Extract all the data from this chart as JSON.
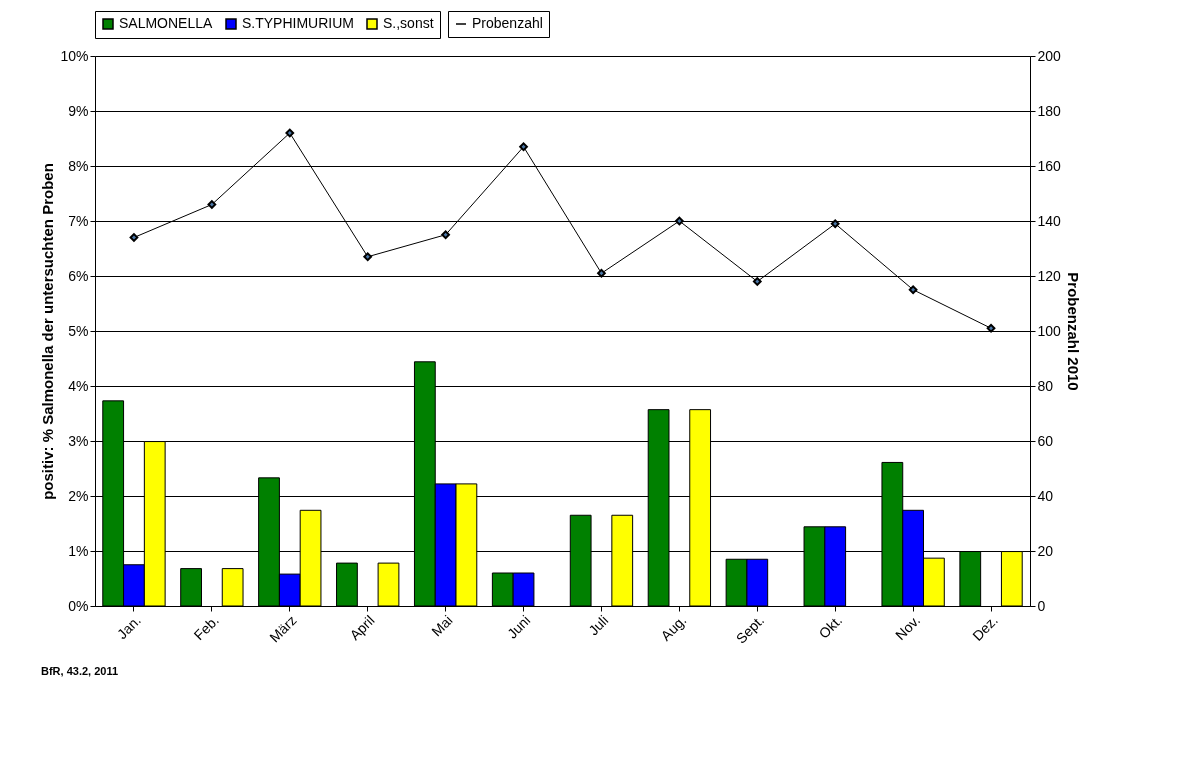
{
  "chart_data": {
    "type": "bar",
    "categories": [
      "Jan.",
      "Feb.",
      "März",
      "April",
      "Mai",
      "Juni",
      "Juli",
      "Aug.",
      "Sept.",
      "Okt.",
      "Nov.",
      "Dez."
    ],
    "series": [
      {
        "name": "SALMONELLA",
        "color": "#008000",
        "values": [
          3.73,
          0.68,
          2.33,
          0.78,
          4.44,
          0.6,
          1.65,
          3.57,
          0.85,
          1.44,
          2.61,
          0.99
        ]
      },
      {
        "name": "S.TYPHIMURIUM",
        "color": "#0000ff",
        "values": [
          0.75,
          null,
          0.58,
          null,
          2.22,
          0.6,
          null,
          null,
          0.85,
          1.44,
          1.74,
          null
        ]
      },
      {
        "name": "S.,sonst",
        "color": "#ffff00",
        "values": [
          2.99,
          0.68,
          1.74,
          0.78,
          2.22,
          null,
          1.65,
          3.57,
          null,
          null,
          0.87,
          0.99
        ]
      },
      {
        "name": "Probenzahl",
        "type": "line",
        "axis": "y2",
        "color": "#000000",
        "marker": "diamond",
        "values": [
          134,
          146,
          172,
          127,
          135,
          167,
          121,
          140,
          118,
          139,
          115,
          101
        ]
      }
    ],
    "ylabel": "positiv: % Salmonella der untersuchten Proben",
    "y2label": "Probenzahl 2010",
    "ylim": [
      0,
      10
    ],
    "yticks": [
      {
        "value": 0,
        "label": "0%"
      },
      {
        "value": 1,
        "label": "1%"
      },
      {
        "value": 2,
        "label": "2%"
      },
      {
        "value": 3,
        "label": "3%"
      },
      {
        "value": 4,
        "label": "4%"
      },
      {
        "value": 5,
        "label": "5%"
      },
      {
        "value": 6,
        "label": "6%"
      },
      {
        "value": 7,
        "label": "7%"
      },
      {
        "value": 8,
        "label": "8%"
      },
      {
        "value": 9,
        "label": "9%"
      },
      {
        "value": 10,
        "label": "10%"
      }
    ],
    "y2lim": [
      0,
      200
    ],
    "y2ticks": [
      0,
      20,
      40,
      60,
      80,
      100,
      120,
      140,
      160,
      180,
      200
    ],
    "grid": "y",
    "legend": "top",
    "annotations": [
      "BfR, 43.2, 2011"
    ]
  }
}
